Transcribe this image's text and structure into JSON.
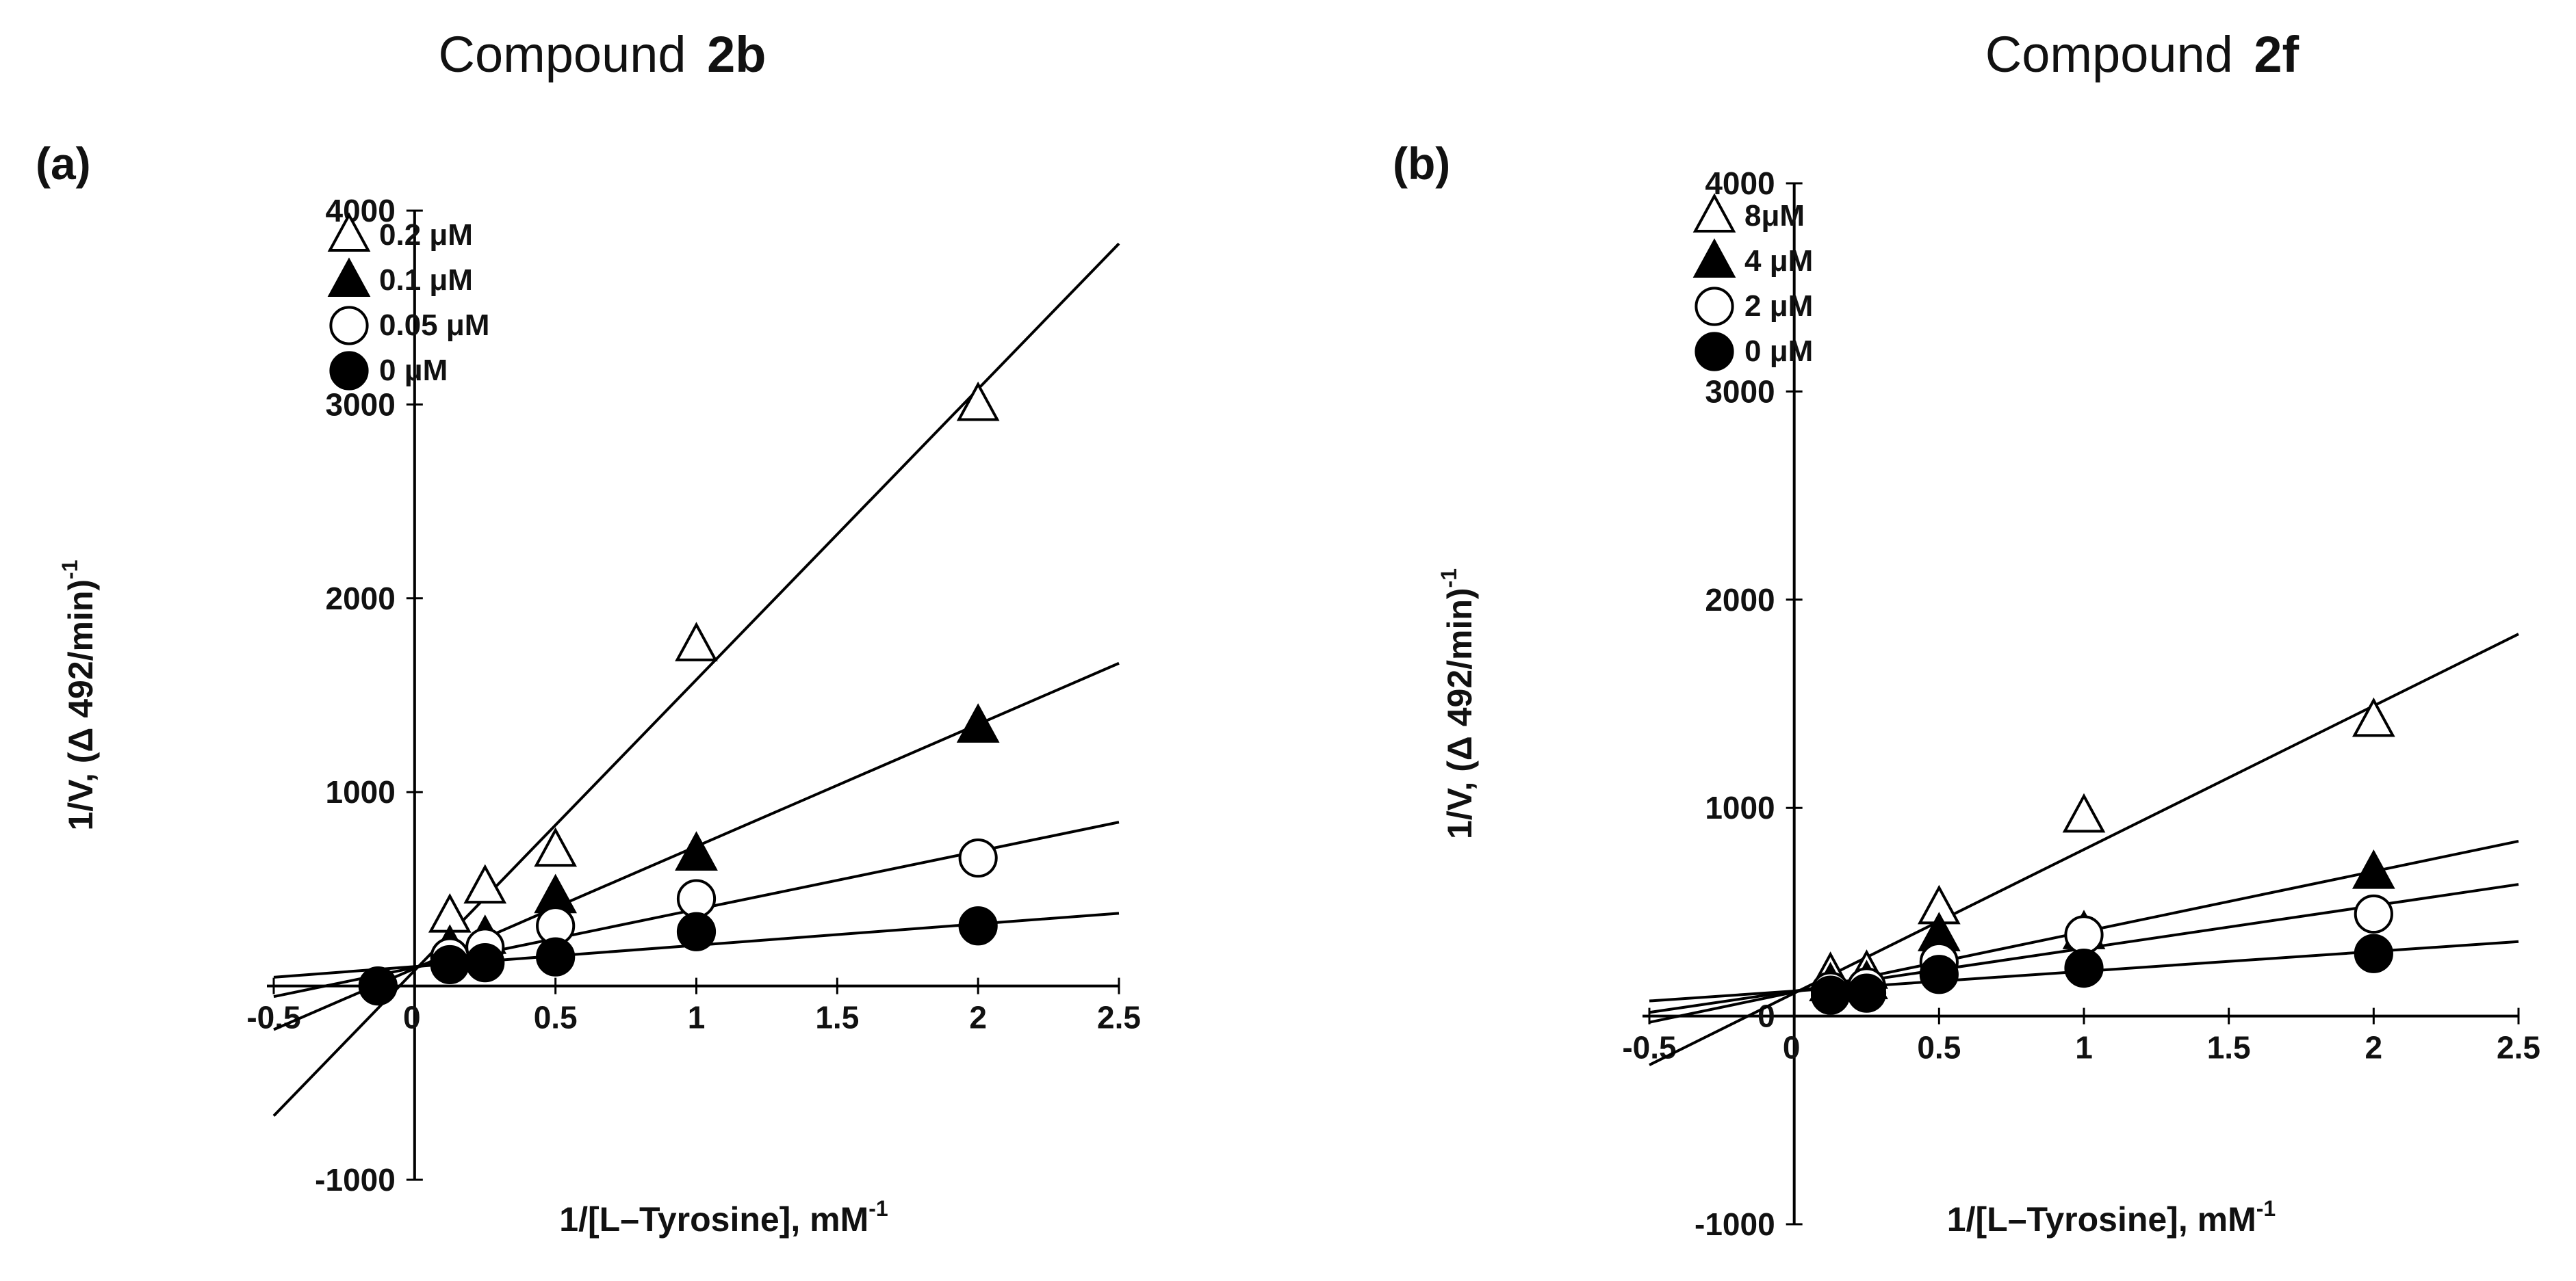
{
  "chart_data": [
    {
      "type": "scatter",
      "panel_label": "(a)",
      "title": "Compound",
      "title_compound": "2b",
      "xlabel": "1/[L–Tyrosine], mM",
      "xlabel_sup": "-1",
      "ylabel": "1/V, (Δ 492/min)",
      "ylabel_sup": "-1",
      "xlim": [
        -0.5,
        2.5
      ],
      "ylim": [
        -1000,
        4000
      ],
      "x_ticks": [
        -0.5,
        0,
        0.5,
        1,
        1.5,
        2,
        2.5
      ],
      "x_tick_labels": [
        "-0.5",
        "0",
        "0.5",
        "1",
        "1.5",
        "2",
        "2.5"
      ],
      "y_ticks": [
        -1000,
        1000,
        2000,
        3000,
        4000
      ],
      "y_tick_labels": [
        "-1000",
        "1000",
        "2000",
        "3000",
        "4000"
      ],
      "legend_position": "top-left",
      "series": [
        {
          "name": "0.2 μM",
          "marker": "triangle-open",
          "x": [
            0.125,
            0.25,
            0.5,
            1,
            2
          ],
          "y": [
            360,
            510,
            700,
            1760,
            3000
          ],
          "fit": {
            "slope": 1500,
            "intercept": 80
          }
        },
        {
          "name": "0.1 μM",
          "marker": "triangle-filled",
          "x": [
            0.125,
            0.25,
            0.5,
            1,
            2
          ],
          "y": [
            200,
            250,
            460,
            680,
            1340
          ],
          "fit": {
            "slope": 630,
            "intercept": 90
          }
        },
        {
          "name": "0.05 μM",
          "marker": "circle-open",
          "x": [
            0.125,
            0.25,
            0.5,
            1,
            2
          ],
          "y": [
            150,
            200,
            310,
            450,
            660
          ],
          "fit": {
            "slope": 300,
            "intercept": 95
          }
        },
        {
          "name": "0 μM",
          "marker": "circle-filled",
          "x": [
            -0.13,
            0.125,
            0.25,
            0.5,
            1,
            2
          ],
          "y": [
            0,
            110,
            120,
            150,
            280,
            310
          ],
          "fit": {
            "slope": 110,
            "intercept": 100
          }
        }
      ]
    },
    {
      "type": "scatter",
      "panel_label": "(b)",
      "title": "Compound",
      "title_compound": "2f",
      "xlabel": "1/[L–Tyrosine], mM",
      "xlabel_sup": "-1",
      "ylabel": "1/V, (Δ 492/min)",
      "ylabel_sup": "-1",
      "xlim": [
        -0.5,
        2.5
      ],
      "ylim": [
        -1000,
        4000
      ],
      "x_ticks": [
        -0.5,
        0,
        0.5,
        1,
        1.5,
        2,
        2.5
      ],
      "x_tick_labels": [
        "-0.5",
        "0",
        "0.5",
        "1",
        "1.5",
        "2",
        "2.5"
      ],
      "y_ticks": [
        -1000,
        0,
        1000,
        2000,
        3000,
        4000
      ],
      "y_tick_labels": [
        "-1000",
        "0",
        "1000",
        "2000",
        "3000",
        "4000"
      ],
      "legend_position": "top-left",
      "series": [
        {
          "name": "8μM",
          "marker": "triangle-open",
          "x": [
            0.125,
            0.25,
            0.5,
            1,
            2
          ],
          "y": [
            200,
            210,
            520,
            960,
            1420
          ],
          "fit": {
            "slope": 690,
            "intercept": 110
          }
        },
        {
          "name": "4 μM",
          "marker": "triangle-filled",
          "x": [
            0.125,
            0.25,
            0.5,
            1,
            2
          ],
          "y": [
            150,
            160,
            390,
            400,
            690
          ],
          "fit": {
            "slope": 290,
            "intercept": 115
          }
        },
        {
          "name": "2 μM",
          "marker": "circle-open",
          "x": [
            0.125,
            0.25,
            0.5,
            1,
            2
          ],
          "y": [
            120,
            140,
            260,
            390,
            490
          ],
          "fit": {
            "slope": 205,
            "intercept": 120
          }
        },
        {
          "name": "0 μM",
          "marker": "circle-filled",
          "x": [
            0.125,
            0.25,
            0.5,
            1,
            2
          ],
          "y": [
            100,
            110,
            200,
            230,
            300
          ],
          "fit": {
            "slope": 95,
            "intercept": 120
          }
        }
      ]
    }
  ]
}
